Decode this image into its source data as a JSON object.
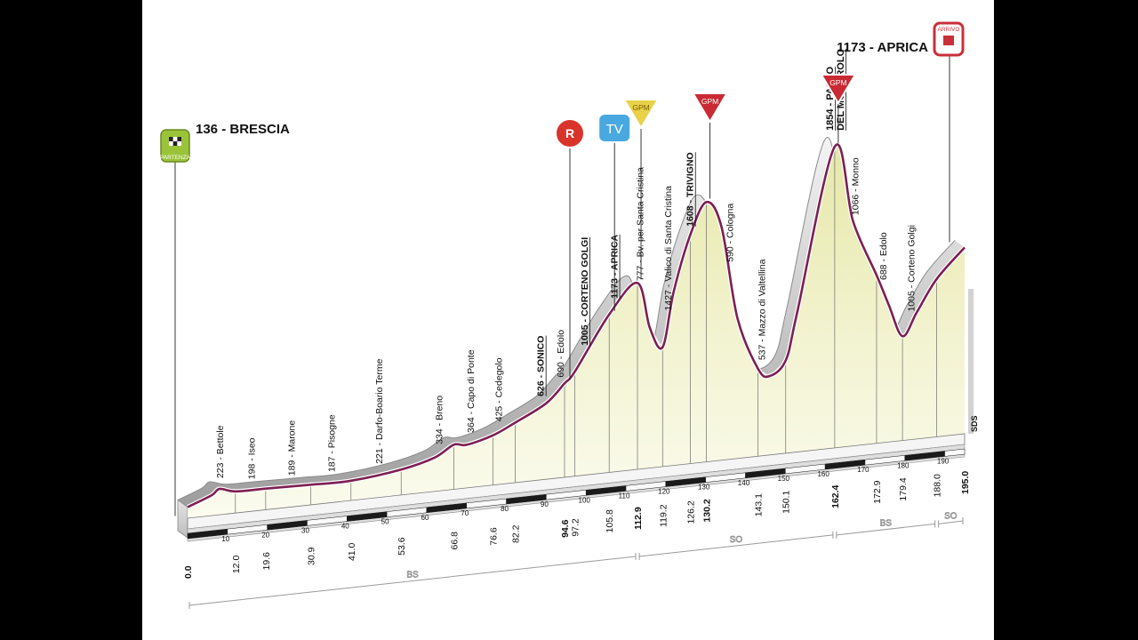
{
  "chart_data": {
    "type": "area",
    "title": "",
    "xlabel": "",
    "ylabel": "",
    "total_km": 195.0,
    "start": {
      "km": 0.0,
      "alt": 136,
      "name": "BRESCIA",
      "badge": "PARTENZA"
    },
    "finish": {
      "km": 195.0,
      "alt": 1173,
      "name": "APRICA",
      "badge": "ARRIVO"
    },
    "profile": [
      {
        "km": 0.0,
        "alt": 136
      },
      {
        "km": 6.0,
        "alt": 190
      },
      {
        "km": 8.0,
        "alt": 223
      },
      {
        "km": 12.0,
        "alt": 198
      },
      {
        "km": 19.6,
        "alt": 195
      },
      {
        "km": 30.9,
        "alt": 189
      },
      {
        "km": 41.0,
        "alt": 187
      },
      {
        "km": 53.6,
        "alt": 221
      },
      {
        "km": 62.0,
        "alt": 270
      },
      {
        "km": 66.8,
        "alt": 334
      },
      {
        "km": 70.0,
        "alt": 325
      },
      {
        "km": 76.6,
        "alt": 364
      },
      {
        "km": 82.2,
        "alt": 425
      },
      {
        "km": 90.0,
        "alt": 520
      },
      {
        "km": 94.6,
        "alt": 626
      },
      {
        "km": 97.2,
        "alt": 690
      },
      {
        "km": 105.8,
        "alt": 1005
      },
      {
        "km": 112.9,
        "alt": 1173
      },
      {
        "km": 116.0,
        "alt": 900
      },
      {
        "km": 119.2,
        "alt": 777
      },
      {
        "km": 122.0,
        "alt": 1100
      },
      {
        "km": 126.2,
        "alt": 1427
      },
      {
        "km": 130.2,
        "alt": 1608
      },
      {
        "km": 134.0,
        "alt": 1450
      },
      {
        "km": 138.0,
        "alt": 900
      },
      {
        "km": 143.1,
        "alt": 590
      },
      {
        "km": 146.0,
        "alt": 537
      },
      {
        "km": 150.1,
        "alt": 620
      },
      {
        "km": 153.0,
        "alt": 900
      },
      {
        "km": 162.4,
        "alt": 1854
      },
      {
        "km": 167.0,
        "alt": 1400
      },
      {
        "km": 172.9,
        "alt": 1066
      },
      {
        "km": 176.0,
        "alt": 880
      },
      {
        "km": 179.4,
        "alt": 688
      },
      {
        "km": 183.0,
        "alt": 820
      },
      {
        "km": 188.0,
        "alt": 1005
      },
      {
        "km": 195.0,
        "alt": 1173
      }
    ],
    "places": [
      {
        "km": 8.0,
        "text": "223 - Bettole",
        "bold": false
      },
      {
        "km": 16.0,
        "text": "198 - Iseo",
        "bold": false
      },
      {
        "km": 26.0,
        "text": "189 - Marone",
        "bold": false
      },
      {
        "km": 36.0,
        "text": "187 - Pisogne",
        "bold": false
      },
      {
        "km": 48.0,
        "text": "221 - Darfo-Boario Terme",
        "bold": false
      },
      {
        "km": 63.0,
        "text": "334 - Breno",
        "bold": false
      },
      {
        "km": 71.0,
        "text": "364 - Capo di Ponte",
        "bold": false
      },
      {
        "km": 78.0,
        "text": "425 - Cedegolo",
        "bold": false
      },
      {
        "km": 88.5,
        "text": "626 - SONICO",
        "bold": true
      },
      {
        "km": 93.5,
        "text": "690 - Edolo",
        "bold": false
      },
      {
        "km": 99.5,
        "text": "1005 - CORTENO GOLGI",
        "bold": true
      },
      {
        "km": 107.0,
        "text": "1173 - APRICA",
        "bold": true
      },
      {
        "km": 113.5,
        "text": "777 - Bv. per Santa Cristina",
        "bold": false
      },
      {
        "km": 120.5,
        "text": "1427 - Valico di Santa Cristina",
        "bold": false
      },
      {
        "km": 126.0,
        "text": "1608 - TRIVIGNO",
        "bold": true
      },
      {
        "km": 136.0,
        "text": "590 - Cologna",
        "bold": false
      },
      {
        "km": 144.0,
        "text": "537 - Mazzo di Valtellina",
        "bold": false
      },
      {
        "km": 167.5,
        "text": "1066 - Monno",
        "bold": false
      },
      {
        "km": 174.5,
        "text": "688 - Edolo",
        "bold": false
      },
      {
        "km": 181.5,
        "text": "1005 - Corteno Golgi",
        "bold": false
      }
    ],
    "mortirolo_label": [
      "1854 - PASSO",
      "DEL MORTIROLO"
    ],
    "km_markers": [
      {
        "km": 0.0,
        "label": "0.0",
        "bold": true
      },
      {
        "km": 12.0,
        "label": "12.0",
        "bold": false
      },
      {
        "km": 19.6,
        "label": "19.6",
        "bold": false
      },
      {
        "km": 30.9,
        "label": "30.9",
        "bold": false
      },
      {
        "km": 41.0,
        "label": "41.0",
        "bold": false
      },
      {
        "km": 53.6,
        "label": "53.6",
        "bold": false
      },
      {
        "km": 66.8,
        "label": "66.8",
        "bold": false
      },
      {
        "km": 76.6,
        "label": "76.6",
        "bold": false
      },
      {
        "km": 82.2,
        "label": "82.2",
        "bold": false
      },
      {
        "km": 94.6,
        "label": "94.6",
        "bold": true
      },
      {
        "km": 97.2,
        "label": "97.2",
        "bold": false
      },
      {
        "km": 105.8,
        "label": "105.8",
        "bold": false
      },
      {
        "km": 112.9,
        "label": "112.9",
        "bold": true
      },
      {
        "km": 119.2,
        "label": "119.2",
        "bold": false
      },
      {
        "km": 126.2,
        "label": "126.2",
        "bold": false
      },
      {
        "km": 130.2,
        "label": "130.2",
        "bold": true
      },
      {
        "km": 143.1,
        "label": "143.1",
        "bold": false
      },
      {
        "km": 150.1,
        "label": "150.1",
        "bold": false
      },
      {
        "km": 162.4,
        "label": "162.4",
        "bold": true
      },
      {
        "km": 172.9,
        "label": "172.9",
        "bold": false
      },
      {
        "km": 179.4,
        "label": "179.4",
        "bold": false
      },
      {
        "km": 188.0,
        "label": "188.0",
        "bold": false
      },
      {
        "km": 195.0,
        "label": "195.0",
        "bold": true
      }
    ],
    "scale_ticks": [
      "10",
      "20",
      "30",
      "40",
      "50",
      "60",
      "70",
      "80",
      "90",
      "100",
      "110",
      "120",
      "130",
      "140",
      "150",
      "160",
      "170",
      "180",
      "190"
    ],
    "segments": [
      {
        "from": 0.0,
        "to": 112.9,
        "label": "BS"
      },
      {
        "from": 112.9,
        "to": 162.4,
        "label": "SO"
      },
      {
        "from": 162.4,
        "to": 188.0,
        "label": "BS"
      },
      {
        "from": 188.0,
        "to": 195.0,
        "label": "SO"
      }
    ],
    "icons": [
      {
        "km": 94.6,
        "type": "R",
        "label": "R",
        "color": "#d9342b"
      },
      {
        "km": 105.8,
        "type": "TV",
        "label": "TV",
        "color": "#4aa8e0"
      },
      {
        "km": 112.9,
        "type": "GPM",
        "label": "GPM",
        "color": "#e8d248"
      },
      {
        "km": 130.2,
        "type": "GPM",
        "label": "GPM",
        "color": "#c92a34"
      },
      {
        "km": 162.4,
        "type": "GPM",
        "label": "GPM",
        "color": "#c92a34"
      }
    ],
    "watermark": "SDS"
  }
}
